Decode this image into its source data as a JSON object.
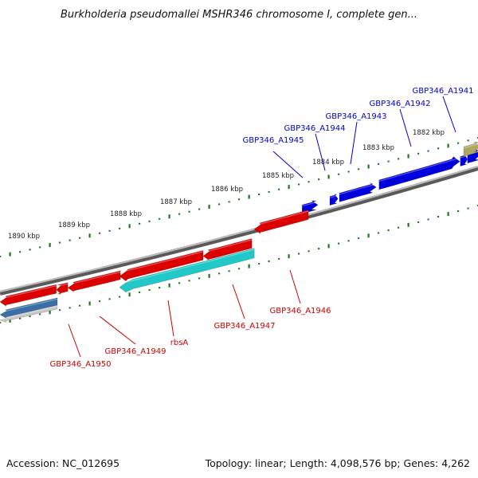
{
  "title": "Burkholderia pseudomallei MSHR346 chromosome I, complete gen...",
  "footer": {
    "accession": "Accession: NC_012695",
    "topology": "Topology: linear; Length: 4,098,576 bp; Genes: 4,262"
  },
  "colors": {
    "tick": "#1a7a1a",
    "forward_gene": "#0000dd",
    "reverse_gene": "#dd0000",
    "reverse_rna": "#20c8c8",
    "pseudo_gene": "#3a70a8",
    "other_feature": "#b0a860",
    "forward_label": "#0000cc",
    "reverse_label": "#cc0000"
  },
  "scale": {
    "unit": "kbp",
    "labels": [
      "1890 kbp",
      "1889 kbp",
      "1888 kbp",
      "1887 kbp",
      "1886 kbp",
      "1885 kbp",
      "1884 kbp",
      "1883 kbp",
      "1882 kbp"
    ]
  },
  "genes": {
    "forward": [
      "GBP346_A1945",
      "GBP346_A1944",
      "GBP346_A1943",
      "GBP346_A1942",
      "GBP346_A1941"
    ],
    "reverse": [
      "GBP346_A1946",
      "GBP346_A1947",
      "rbsA",
      "GBP346_A1949",
      "GBP346_A1950"
    ]
  }
}
